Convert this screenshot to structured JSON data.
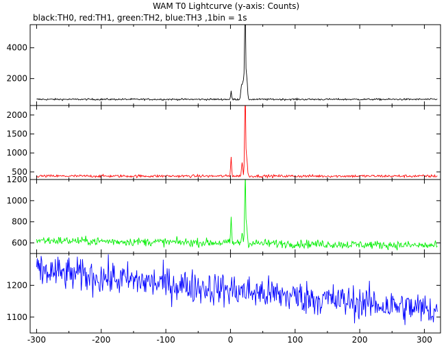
{
  "title": "WAM T0 Lightcurve (y-axis: Counts)",
  "subtitle": "black:TH0, red:TH1, green:TH2, blue:TH3 ,1bin = 1s",
  "chart_data": {
    "type": "line",
    "xlim": [
      -310,
      325
    ],
    "x_ticks": [
      -300,
      -200,
      -100,
      0,
      100,
      200,
      300
    ],
    "grid": false,
    "panels": [
      {
        "name": "TH0",
        "color": "#000000",
        "ylim": [
          250,
          5500
        ],
        "y_ticks": [
          2000,
          4000
        ],
        "baseline": 650,
        "noise": 40,
        "drift": 0,
        "features": [
          {
            "x": 1,
            "peak": 1150,
            "width": 1.0
          },
          {
            "x": 17,
            "peak": 1500,
            "width": 1.5
          },
          {
            "x": 20,
            "peak": 1900,
            "width": 2.0
          },
          {
            "x": 22,
            "peak": 3800,
            "width": 0.8
          },
          {
            "x": 23,
            "peak": 5400,
            "width": 0.8
          },
          {
            "x": 25,
            "peak": 2200,
            "width": 1.5
          }
        ]
      },
      {
        "name": "TH1",
        "color": "#ff0000",
        "ylim": [
          300,
          2250
        ],
        "y_ticks": [
          500,
          1000,
          1500,
          2000
        ],
        "baseline": 390,
        "noise": 25,
        "drift": 0,
        "features": [
          {
            "x": 1,
            "peak": 920,
            "width": 1.0
          },
          {
            "x": 18,
            "peak": 730,
            "width": 1.5
          },
          {
            "x": 22,
            "peak": 1500,
            "width": 0.8
          },
          {
            "x": 23,
            "peak": 2250,
            "width": 0.8
          },
          {
            "x": 25,
            "peak": 900,
            "width": 1.5
          }
        ]
      },
      {
        "name": "TH2",
        "color": "#00ee00",
        "ylim": [
          500,
          1200
        ],
        "y_ticks": [
          600,
          800,
          1000,
          1200
        ],
        "baseline": 600,
        "noise": 28,
        "drift": -0.08,
        "features": [
          {
            "x": 1,
            "peak": 840,
            "width": 1.0
          },
          {
            "x": 18,
            "peak": 700,
            "width": 1.5
          },
          {
            "x": 22,
            "peak": 900,
            "width": 0.8
          },
          {
            "x": 23,
            "peak": 1180,
            "width": 0.8
          },
          {
            "x": 25,
            "peak": 760,
            "width": 1.5
          }
        ]
      },
      {
        "name": "TH3",
        "color": "#0000ff",
        "ylim": [
          1050,
          1300
        ],
        "y_ticks": [
          1100,
          1200
        ],
        "baseline": 1185,
        "noise": 38,
        "drift": -0.2,
        "features": []
      }
    ]
  }
}
